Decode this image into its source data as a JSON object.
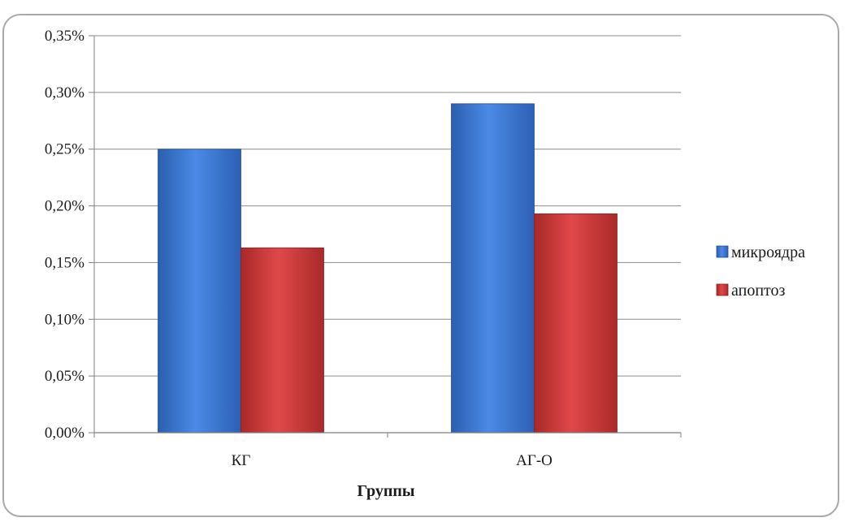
{
  "chart_data": {
    "type": "bar",
    "title": "",
    "xlabel": "Группы",
    "ylabel": "",
    "categories": [
      "КГ",
      "АГ-О"
    ],
    "series": [
      {
        "name": "микроядра",
        "values": [
          0.25,
          0.29
        ],
        "color": "#3a75d1"
      },
      {
        "name": "апоптоз",
        "values": [
          0.163,
          0.193
        ],
        "color": "#cc3636"
      }
    ],
    "ylim": [
      0,
      0.35
    ],
    "yticks": [
      0,
      0.05,
      0.1,
      0.15,
      0.2,
      0.25,
      0.3,
      0.35
    ],
    "ytick_labels": [
      "0,00%",
      "0,05%",
      "0,10%",
      "0,15%",
      "0,20%",
      "0,25%",
      "0,30%",
      "0,35%"
    ],
    "grid": true,
    "legend_position": "right"
  }
}
